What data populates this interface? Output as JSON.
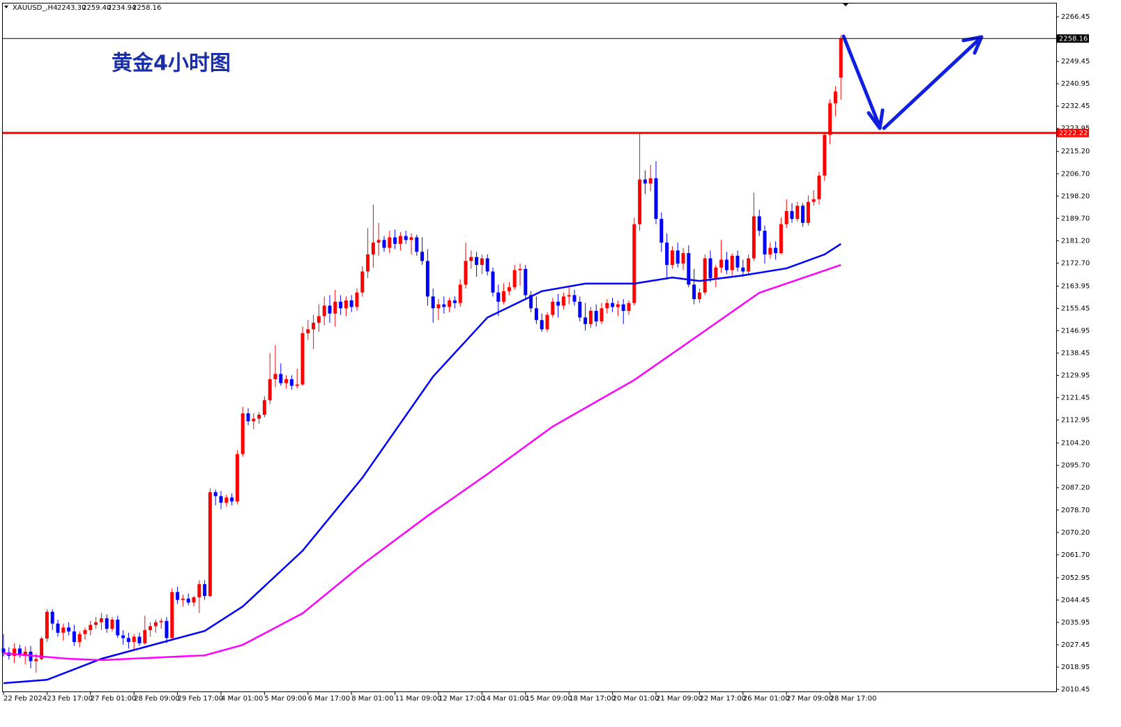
{
  "chart_data": {
    "type": "candlestick",
    "title": "黄金4小时图",
    "header": {
      "symbol": "XAUUSD_,H4",
      "open": "2243.30",
      "high": "2259.40",
      "low": "2234.94",
      "close": "2258.16"
    },
    "categories": [
      "22 Feb 2024",
      null,
      null,
      null,
      null,
      null,
      null,
      null,
      "23 Feb 17:00",
      null,
      null,
      null,
      null,
      null,
      null,
      null,
      "27 Feb 01:00",
      null,
      null,
      null,
      null,
      null,
      null,
      null,
      "28 Feb 09:00",
      null,
      null,
      null,
      null,
      null,
      null,
      null,
      "29 Feb 17:00",
      null,
      null,
      null,
      null,
      null,
      null,
      null,
      "4 Mar 01:00",
      null,
      null,
      null,
      null,
      null,
      null,
      null,
      "5 Mar 09:00",
      null,
      null,
      null,
      null,
      null,
      null,
      null,
      "6 Mar 17:00",
      null,
      null,
      null,
      null,
      null,
      null,
      null,
      "8 Mar 01:00",
      null,
      null,
      null,
      null,
      null,
      null,
      null,
      "11 Mar 09:00",
      null,
      null,
      null,
      null,
      null,
      null,
      null,
      "12 Mar 17:00",
      null,
      null,
      null,
      null,
      null,
      null,
      null,
      "14 Mar 01:00",
      null,
      null,
      null,
      null,
      null,
      null,
      null,
      "15 Mar 09:00",
      null,
      null,
      null,
      null,
      null,
      null,
      null,
      "18 Mar 17:00",
      null,
      null,
      null,
      null,
      null,
      null,
      null,
      "20 Mar 01:00",
      null,
      null,
      null,
      null,
      null,
      null,
      null,
      "21 Mar 09:00",
      null,
      null,
      null,
      null,
      null,
      null,
      null,
      "22 Mar 17:00",
      null,
      null,
      null,
      null,
      null,
      null,
      null,
      "26 Mar 01:00",
      null,
      null,
      null,
      null,
      null,
      null,
      null,
      "27 Mar 09:00",
      null,
      null,
      null,
      null,
      null,
      null,
      null,
      "28 Mar 17:00",
      null,
      null
    ],
    "candles": [
      [
        2026.0,
        2031.5,
        2023.0,
        2024.5
      ],
      [
        2024.5,
        2026.5,
        2021.8,
        2023.2
      ],
      [
        2023.2,
        2028.0,
        2020.5,
        2026.0
      ],
      [
        2026.0,
        2027.5,
        2022.5,
        2023.5
      ],
      [
        2023.5,
        2026.8,
        2020.0,
        2024.8
      ],
      [
        2024.8,
        2027.0,
        2018.5,
        2021.2
      ],
      [
        2021.2,
        2024.0,
        2016.8,
        2022.0
      ],
      [
        2022.0,
        2030.5,
        2021.5,
        2029.8
      ],
      [
        2029.8,
        2041.0,
        2028.5,
        2040.0
      ],
      [
        2040.0,
        2041.0,
        2033.0,
        2035.5
      ],
      [
        2035.5,
        2037.0,
        2030.5,
        2032.0
      ],
      [
        2032.0,
        2035.5,
        2029.0,
        2034.0
      ],
      [
        2034.0,
        2036.0,
        2031.0,
        2032.5
      ],
      [
        2032.5,
        2035.0,
        2027.0,
        2028.5
      ],
      [
        2028.5,
        2032.5,
        2026.5,
        2031.5
      ],
      [
        2031.5,
        2034.0,
        2029.5,
        2033.0
      ],
      [
        2033.0,
        2036.5,
        2031.0,
        2035.0
      ],
      [
        2035.0,
        2038.0,
        2033.5,
        2036.0
      ],
      [
        2036.0,
        2039.5,
        2033.0,
        2037.5
      ],
      [
        2037.5,
        2039.0,
        2032.0,
        2033.5
      ],
      [
        2033.5,
        2038.0,
        2032.5,
        2037.0
      ],
      [
        2037.0,
        2038.5,
        2030.0,
        2031.0
      ],
      [
        2031.0,
        2033.0,
        2027.5,
        2030.0
      ],
      [
        2030.0,
        2032.0,
        2026.0,
        2028.5
      ],
      [
        2028.5,
        2031.5,
        2025.0,
        2030.5
      ],
      [
        2030.5,
        2032.0,
        2027.0,
        2028.0
      ],
      [
        2028.0,
        2038.5,
        2027.5,
        2033.0
      ],
      [
        2033.0,
        2036.0,
        2030.5,
        2034.5
      ],
      [
        2034.5,
        2037.0,
        2032.0,
        2036.0
      ],
      [
        2036.0,
        2037.5,
        2033.5,
        2036.5
      ],
      [
        2036.5,
        2038.0,
        2028.0,
        2030.0
      ],
      [
        2030.0,
        2049.0,
        2029.0,
        2047.5
      ],
      [
        2047.5,
        2049.5,
        2043.0,
        2044.5
      ],
      [
        2044.5,
        2046.5,
        2042.0,
        2045.0
      ],
      [
        2045.0,
        2047.0,
        2042.5,
        2043.5
      ],
      [
        2043.5,
        2046.0,
        2042.0,
        2045.5
      ],
      [
        2045.5,
        2052.0,
        2039.5,
        2050.5
      ],
      [
        2050.5,
        2052.0,
        2044.5,
        2046.0
      ],
      [
        2046.0,
        2087.0,
        2045.5,
        2085.5
      ],
      [
        2085.5,
        2086.5,
        2080.5,
        2084.0
      ],
      [
        2084.0,
        2086.0,
        2079.0,
        2081.5
      ],
      [
        2081.5,
        2084.5,
        2080.0,
        2083.5
      ],
      [
        2083.5,
        2085.0,
        2080.5,
        2082.0
      ],
      [
        2082.0,
        2101.5,
        2081.0,
        2100.0
      ],
      [
        2100.0,
        2118.0,
        2099.0,
        2115.5
      ],
      [
        2115.5,
        2117.5,
        2111.0,
        2112.5
      ],
      [
        2112.5,
        2115.5,
        2109.5,
        2113.5
      ],
      [
        2113.5,
        2116.0,
        2111.5,
        2115.0
      ],
      [
        2115.0,
        2122.0,
        2114.0,
        2120.5
      ],
      [
        2120.5,
        2138.5,
        2119.0,
        2128.5
      ],
      [
        2128.5,
        2141.5,
        2125.5,
        2130.5
      ],
      [
        2130.5,
        2134.5,
        2126.0,
        2127.0
      ],
      [
        2127.0,
        2130.0,
        2125.0,
        2128.5
      ],
      [
        2128.5,
        2130.0,
        2124.5,
        2126.0
      ],
      [
        2126.0,
        2132.5,
        2125.0,
        2126.5
      ],
      [
        2126.5,
        2148.5,
        2126.0,
        2146.0
      ],
      [
        2146.0,
        2151.0,
        2143.5,
        2147.5
      ],
      [
        2147.5,
        2153.0,
        2140.0,
        2150.0
      ],
      [
        2150.0,
        2157.0,
        2146.5,
        2152.5
      ],
      [
        2152.5,
        2160.0,
        2149.0,
        2156.5
      ],
      [
        2156.5,
        2160.5,
        2150.0,
        2153.5
      ],
      [
        2153.5,
        2162.5,
        2148.5,
        2158.0
      ],
      [
        2158.0,
        2160.5,
        2153.0,
        2155.5
      ],
      [
        2155.5,
        2160.0,
        2152.5,
        2158.5
      ],
      [
        2158.5,
        2160.5,
        2154.0,
        2156.0
      ],
      [
        2156.0,
        2163.0,
        2154.5,
        2161.5
      ],
      [
        2161.5,
        2171.5,
        2160.0,
        2169.5
      ],
      [
        2169.5,
        2186.0,
        2167.0,
        2176.0
      ],
      [
        2176.0,
        2195.0,
        2171.0,
        2180.5
      ],
      [
        2180.5,
        2188.0,
        2175.5,
        2181.5
      ],
      [
        2181.5,
        2183.0,
        2177.0,
        2178.5
      ],
      [
        2178.5,
        2185.0,
        2176.5,
        2182.5
      ],
      [
        2182.5,
        2185.5,
        2178.0,
        2180.0
      ],
      [
        2180.0,
        2184.5,
        2177.5,
        2183.0
      ],
      [
        2183.0,
        2185.0,
        2180.0,
        2181.5
      ],
      [
        2181.5,
        2184.0,
        2176.0,
        2182.5
      ],
      [
        2182.5,
        2183.5,
        2175.5,
        2177.0
      ],
      [
        2177.0,
        2182.5,
        2172.0,
        2173.5
      ],
      [
        2173.5,
        2178.0,
        2156.5,
        2160.0
      ],
      [
        2160.0,
        2163.0,
        2150.0,
        2155.5
      ],
      [
        2155.5,
        2159.0,
        2151.0,
        2157.0
      ],
      [
        2157.0,
        2160.0,
        2153.5,
        2156.0
      ],
      [
        2156.0,
        2159.5,
        2154.0,
        2158.5
      ],
      [
        2158.5,
        2160.0,
        2155.5,
        2157.5
      ],
      [
        2157.5,
        2166.5,
        2156.0,
        2164.5
      ],
      [
        2164.5,
        2180.5,
        2163.0,
        2173.5
      ],
      [
        2173.5,
        2177.5,
        2170.5,
        2175.0
      ],
      [
        2175.0,
        2177.0,
        2167.5,
        2172.0
      ],
      [
        2172.0,
        2176.0,
        2168.5,
        2174.5
      ],
      [
        2174.5,
        2176.0,
        2168.0,
        2169.5
      ],
      [
        2169.5,
        2171.0,
        2160.0,
        2161.5
      ],
      [
        2161.5,
        2164.5,
        2152.5,
        2158.0
      ],
      [
        2158.0,
        2165.0,
        2157.0,
        2162.0
      ],
      [
        2162.0,
        2165.5,
        2160.5,
        2163.5
      ],
      [
        2163.5,
        2172.0,
        2162.5,
        2170.0
      ],
      [
        2170.0,
        2172.5,
        2164.0,
        2170.5
      ],
      [
        2170.5,
        2172.0,
        2159.0,
        2160.5
      ],
      [
        2160.5,
        2162.0,
        2154.0,
        2155.5
      ],
      [
        2155.5,
        2160.0,
        2149.5,
        2151.0
      ],
      [
        2151.0,
        2153.5,
        2146.5,
        2147.5
      ],
      [
        2147.5,
        2154.0,
        2146.5,
        2153.0
      ],
      [
        2153.0,
        2159.5,
        2152.0,
        2158.0
      ],
      [
        2158.0,
        2161.0,
        2152.0,
        2156.5
      ],
      [
        2156.5,
        2161.5,
        2155.0,
        2160.0
      ],
      [
        2160.0,
        2163.5,
        2157.0,
        2160.5
      ],
      [
        2160.5,
        2162.5,
        2156.5,
        2158.0
      ],
      [
        2158.0,
        2160.0,
        2150.5,
        2152.0
      ],
      [
        2152.0,
        2157.5,
        2147.0,
        2149.5
      ],
      [
        2149.5,
        2156.0,
        2148.0,
        2154.5
      ],
      [
        2154.5,
        2157.0,
        2148.5,
        2150.5
      ],
      [
        2150.5,
        2157.5,
        2149.5,
        2155.5
      ],
      [
        2155.5,
        2159.0,
        2153.5,
        2157.5
      ],
      [
        2157.5,
        2159.5,
        2154.0,
        2156.0
      ],
      [
        2156.0,
        2158.5,
        2152.5,
        2157.0
      ],
      [
        2157.0,
        2159.0,
        2149.5,
        2154.5
      ],
      [
        2154.5,
        2158.5,
        2153.0,
        2157.5
      ],
      [
        2157.5,
        2190.0,
        2156.5,
        2187.5
      ],
      [
        2187.5,
        2222.2,
        2185.0,
        2204.5
      ],
      [
        2204.5,
        2208.0,
        2199.0,
        2203.0
      ],
      [
        2203.0,
        2210.0,
        2200.0,
        2205.0
      ],
      [
        2205.0,
        2211.5,
        2187.5,
        2189.5
      ],
      [
        2189.5,
        2192.0,
        2177.0,
        2180.5
      ],
      [
        2180.5,
        2184.0,
        2166.5,
        2172.0
      ],
      [
        2172.0,
        2179.0,
        2170.5,
        2177.5
      ],
      [
        2177.5,
        2180.5,
        2171.0,
        2172.5
      ],
      [
        2172.5,
        2178.5,
        2170.0,
        2176.5
      ],
      [
        2176.5,
        2179.5,
        2163.5,
        2164.5
      ],
      [
        2164.5,
        2170.5,
        2157.0,
        2159.0
      ],
      [
        2159.0,
        2163.0,
        2157.5,
        2161.5
      ],
      [
        2161.5,
        2176.0,
        2160.5,
        2174.5
      ],
      [
        2174.5,
        2177.5,
        2165.5,
        2167.0
      ],
      [
        2167.0,
        2172.0,
        2163.5,
        2171.0
      ],
      [
        2171.0,
        2181.5,
        2169.0,
        2174.0
      ],
      [
        2174.0,
        2177.0,
        2168.5,
        2170.0
      ],
      [
        2170.0,
        2176.5,
        2168.0,
        2175.5
      ],
      [
        2175.5,
        2177.5,
        2169.5,
        2171.0
      ],
      [
        2171.0,
        2174.0,
        2167.5,
        2169.5
      ],
      [
        2169.5,
        2176.0,
        2168.5,
        2174.5
      ],
      [
        2174.5,
        2199.5,
        2173.5,
        2190.5
      ],
      [
        2190.5,
        2193.0,
        2183.0,
        2185.0
      ],
      [
        2185.0,
        2187.0,
        2172.5,
        2176.0
      ],
      [
        2176.0,
        2180.5,
        2174.5,
        2178.5
      ],
      [
        2178.5,
        2181.0,
        2174.0,
        2176.5
      ],
      [
        2176.5,
        2190.0,
        2176.0,
        2187.5
      ],
      [
        2187.5,
        2197.0,
        2186.0,
        2192.5
      ],
      [
        2192.5,
        2195.5,
        2188.0,
        2189.5
      ],
      [
        2189.5,
        2196.0,
        2188.5,
        2194.5
      ],
      [
        2194.5,
        2195.5,
        2186.5,
        2188.0
      ],
      [
        2188.0,
        2198.5,
        2187.0,
        2196.0
      ],
      [
        2196.0,
        2200.5,
        2194.5,
        2197.0
      ],
      [
        2197.0,
        2207.5,
        2195.0,
        2206.0
      ],
      [
        2206.0,
        2222.5,
        2204.0,
        2221.5
      ],
      [
        2221.5,
        2235.0,
        2218.0,
        2233.5
      ],
      [
        2233.5,
        2240.0,
        2228.5,
        2238.0
      ],
      [
        2243.3,
        2259.4,
        2234.94,
        2258.16
      ]
    ],
    "up_color": "#ff0000",
    "down_color": "#0000ff",
    "ylim": [
      2009.4,
      2271.5
    ],
    "yticks": [
      2010.45,
      2018.95,
      2027.45,
      2035.95,
      2044.45,
      2052.95,
      {
        "value": 2061.7,
        "label": "2061.70"
      },
      {
        "value": 2070.2,
        "label": "2070.20"
      },
      {
        "value": 2078.7,
        "label": "2078.70"
      },
      {
        "value": 2087.2,
        "label": "2087.20"
      },
      {
        "value": 2095.7,
        "label": "2095.70"
      },
      {
        "value": 2104.2,
        "label": "2104.20"
      },
      2112.95,
      2121.45,
      2129.95,
      2138.45,
      2146.95,
      2155.45,
      2163.95,
      {
        "value": 2172.7,
        "label": "2172.70"
      },
      {
        "value": 2181.2,
        "label": "2181.20"
      },
      {
        "value": 2189.7,
        "label": "2189.70"
      },
      {
        "value": 2198.2,
        "label": "2198.20"
      },
      {
        "value": 2206.7,
        "label": "2206.70"
      },
      {
        "value": 2215.2,
        "label": "2215.20"
      },
      2223.95,
      2232.45,
      2240.95,
      2249.45,
      2266.45
    ],
    "series": [
      {
        "color": "#0000ff",
        "x": [
          0,
          8,
          18,
          37,
          44,
          55,
          66,
          79,
          89,
          99,
          107,
          116,
          123,
          128,
          136,
          144,
          151,
          154
        ],
        "values": [
          2012.8,
          2014.1,
          2022.1,
          2032.7,
          2042.0,
          2063.2,
          2091.0,
          2129.5,
          2152.0,
          2162.0,
          2164.9,
          2164.9,
          2167.2,
          2165.9,
          2168.0,
          2170.7,
          2176.0,
          2180.0
        ]
      },
      {
        "color": "#ff00ff",
        "x": [
          0,
          12,
          18,
          37,
          44,
          55,
          66,
          78,
          89,
          101,
          116,
          128,
          139,
          154
        ],
        "values": [
          2024.2,
          2022.1,
          2021.6,
          2023.4,
          2027.4,
          2039.4,
          2058.0,
          2076.5,
          2092.4,
          2110.5,
          2128.2,
          2145.5,
          2161.4,
          2172.0
        ]
      }
    ],
    "hline": {
      "value": 2222.22,
      "color": "#ff0000"
    },
    "price_line": {
      "value": 2258.16,
      "color": "#000000"
    }
  }
}
